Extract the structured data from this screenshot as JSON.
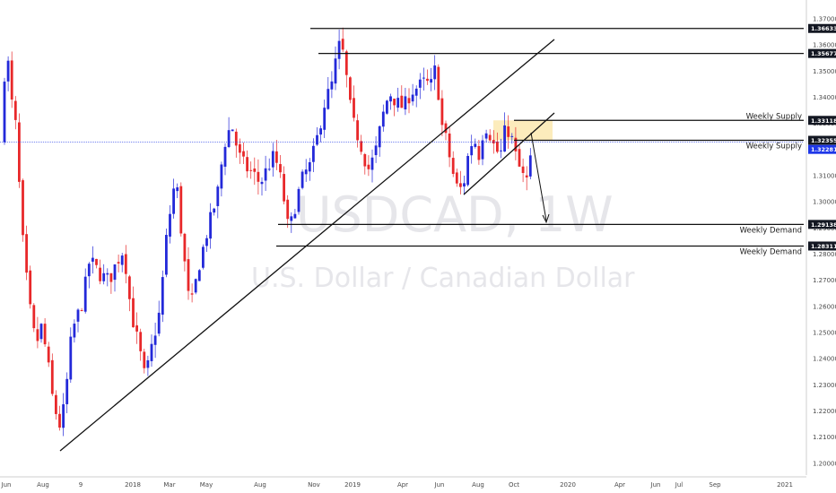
{
  "chart_data": {
    "type": "candlestick",
    "symbol_watermark": "USDCAD, 1W",
    "name_watermark": "U.S. Dollar / Canadian Dollar",
    "ylim": [
      1.1955,
      1.3755
    ],
    "y_ticks": [
      "1.37000",
      "1.36000",
      "1.35000",
      "1.34000",
      "1.33000",
      "1.32000",
      "1.31000",
      "1.30000",
      "1.29000",
      "1.28000",
      "1.27000",
      "1.26000",
      "1.25000",
      "1.24000",
      "1.23000",
      "1.22000",
      "1.21000",
      "1.20000"
    ],
    "x_ticks": [
      "Jun",
      "Aug",
      "9",
      "2018",
      "Mar",
      "May",
      "Aug",
      "Nov",
      "2019",
      "Apr",
      "Jun",
      "Aug",
      "Oct",
      "2020",
      "Apr",
      "Jun",
      "Jul",
      "Sep",
      "2021"
    ],
    "horizontal_levels": [
      {
        "price": 1.36633,
        "badge": "1.36633",
        "label": ""
      },
      {
        "price": 1.35677,
        "badge": "1.35677",
        "label": ""
      },
      {
        "price": 1.33118,
        "badge": "1.33118",
        "label": "Weekly Supply"
      },
      {
        "price": 1.32355,
        "badge": "1.32355",
        "label": "Weekly Supply"
      },
      {
        "price": 1.29138,
        "badge": "1.29138",
        "label": "Weekly Demand"
      },
      {
        "price": 1.28311,
        "badge": "1.28311",
        "label": "Weekly Demand"
      }
    ],
    "current_price": {
      "price": 1.32281,
      "badge": "1.32281"
    },
    "supply_zone": [
      1.32355,
      1.33118
    ],
    "colors": {
      "up": "#2329d9",
      "down": "#e8282a",
      "badge": "#131722",
      "current": "#1e37e8",
      "zone": "#fbe9b0",
      "line": "#111111"
    }
  }
}
